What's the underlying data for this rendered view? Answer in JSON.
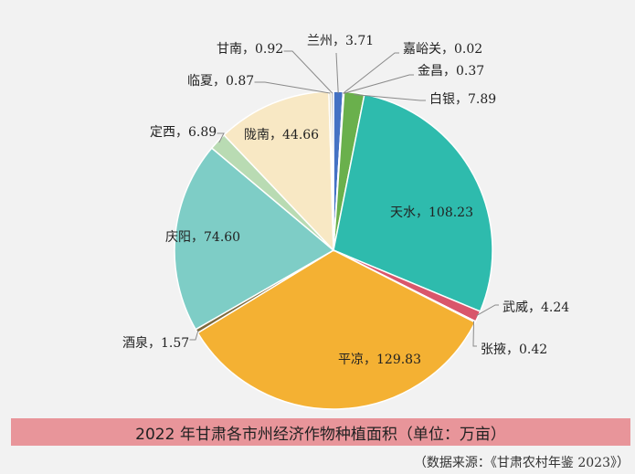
{
  "chart_data": {
    "type": "pie",
    "title": "2022 年甘肃各市州经济作物种植面积（单位：万亩）",
    "source": "（数据来源：《甘肃农村年鉴 2023》）",
    "slices": [
      {
        "name": "兰州",
        "value": 3.71,
        "label": "兰州，3.71",
        "color": "#4472c4"
      },
      {
        "name": "嘉峪关",
        "value": 0.02,
        "label": "嘉峪关，0.02",
        "color": "#8064a2"
      },
      {
        "name": "金昌",
        "value": 0.37,
        "label": "金昌，0.37",
        "color": "#9bbb59"
      },
      {
        "name": "白银",
        "value": 7.89,
        "label": "白银，7.89",
        "color": "#6ab04c"
      },
      {
        "name": "天水",
        "value": 108.23,
        "label": "天水，108.23",
        "color": "#2ebbad"
      },
      {
        "name": "武威",
        "value": 4.24,
        "label": "武威，4.24",
        "color": "#d9566b"
      },
      {
        "name": "张掖",
        "value": 0.42,
        "label": "张掖，0.42",
        "color": "#c9c9c9"
      },
      {
        "name": "平凉",
        "value": 129.83,
        "label": "平凉，129.83",
        "color": "#f4b133"
      },
      {
        "name": "酒泉",
        "value": 1.57,
        "label": "酒泉，1.57",
        "color": "#7f6a3c"
      },
      {
        "name": "庆阳",
        "value": 74.6,
        "label": "庆阳，74.60",
        "color": "#7ecdc6"
      },
      {
        "name": "定西",
        "value": 6.89,
        "label": "定西，6.89",
        "color": "#b9dbb3"
      },
      {
        "name": "陇南",
        "value": 44.66,
        "label": "陇南，44.66",
        "color": "#f8e8c4"
      },
      {
        "name": "临夏",
        "value": 0.87,
        "label": "临夏，0.87",
        "color": "#d6cda8"
      },
      {
        "name": "甘南",
        "value": 0.92,
        "label": "甘南，0.92",
        "color": "#b5b5b5"
      }
    ]
  }
}
